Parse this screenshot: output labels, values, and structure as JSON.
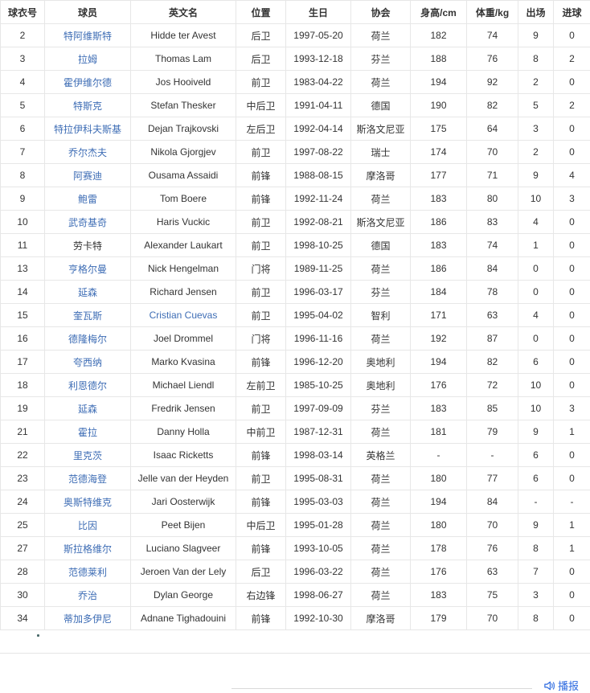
{
  "table": {
    "headers": [
      "球衣号",
      "球员",
      "英文名",
      "位置",
      "生日",
      "协会",
      "身高/cm",
      "体重/kg",
      "出场",
      "进球"
    ],
    "rows": [
      {
        "cells": [
          "2",
          "特阿维斯特",
          "Hidde ter Avest",
          "后卫",
          "1997-05-20",
          "荷兰",
          "182",
          "74",
          "9",
          "0"
        ],
        "link_cols": [
          1
        ]
      },
      {
        "cells": [
          "3",
          "拉姆",
          "Thomas Lam",
          "后卫",
          "1993-12-18",
          "芬兰",
          "188",
          "76",
          "8",
          "2"
        ],
        "link_cols": [
          1
        ]
      },
      {
        "cells": [
          "4",
          "霍伊维尔德",
          "Jos Hooiveld",
          "前卫",
          "1983-04-22",
          "荷兰",
          "194",
          "92",
          "2",
          "0"
        ],
        "link_cols": [
          1
        ]
      },
      {
        "cells": [
          "5",
          "特斯克",
          "Stefan Thesker",
          "中后卫",
          "1991-04-11",
          "德国",
          "190",
          "82",
          "5",
          "2"
        ],
        "link_cols": [
          1
        ]
      },
      {
        "cells": [
          "6",
          "特拉伊科夫斯基",
          "Dejan Trajkovski",
          "左后卫",
          "1992-04-14",
          "斯洛文尼亚",
          "175",
          "64",
          "3",
          "0"
        ],
        "link_cols": [
          1
        ]
      },
      {
        "cells": [
          "7",
          "乔尔杰夫",
          "Nikola Gjorgjev",
          "前卫",
          "1997-08-22",
          "瑞士",
          "174",
          "70",
          "2",
          "0"
        ],
        "link_cols": [
          1
        ]
      },
      {
        "cells": [
          "8",
          "阿赛迪",
          "Ousama Assaidi",
          "前锋",
          "1988-08-15",
          "摩洛哥",
          "177",
          "71",
          "9",
          "4"
        ],
        "link_cols": [
          1
        ]
      },
      {
        "cells": [
          "9",
          "鲍雷",
          "Tom Boere",
          "前锋",
          "1992-11-24",
          "荷兰",
          "183",
          "80",
          "10",
          "3"
        ],
        "link_cols": [
          1
        ]
      },
      {
        "cells": [
          "10",
          "武奇基奇",
          "Haris Vuckic",
          "前卫",
          "1992-08-21",
          "斯洛文尼亚",
          "186",
          "83",
          "4",
          "0"
        ],
        "link_cols": [
          1
        ]
      },
      {
        "cells": [
          "11",
          "劳卡特",
          "Alexander Laukart",
          "前卫",
          "1998-10-25",
          "德国",
          "183",
          "74",
          "1",
          "0"
        ],
        "link_cols": []
      },
      {
        "cells": [
          "13",
          "亨格尔曼",
          "Nick Hengelman",
          "门将",
          "1989-11-25",
          "荷兰",
          "186",
          "84",
          "0",
          "0"
        ],
        "link_cols": [
          1
        ]
      },
      {
        "cells": [
          "14",
          "延森",
          "Richard Jensen",
          "前卫",
          "1996-03-17",
          "芬兰",
          "184",
          "78",
          "0",
          "0"
        ],
        "link_cols": [
          1
        ]
      },
      {
        "cells": [
          "15",
          "奎瓦斯",
          "Cristian Cuevas",
          "前卫",
          "1995-04-02",
          "智利",
          "171",
          "63",
          "4",
          "0"
        ],
        "link_cols": [
          1,
          2
        ]
      },
      {
        "cells": [
          "16",
          "德隆梅尔",
          "Joel Drommel",
          "门将",
          "1996-11-16",
          "荷兰",
          "192",
          "87",
          "0",
          "0"
        ],
        "link_cols": [
          1
        ]
      },
      {
        "cells": [
          "17",
          "夸西纳",
          "Marko Kvasina",
          "前锋",
          "1996-12-20",
          "奥地利",
          "194",
          "82",
          "6",
          "0"
        ],
        "link_cols": [
          1
        ]
      },
      {
        "cells": [
          "18",
          "利恩德尔",
          "Michael Liendl",
          "左前卫",
          "1985-10-25",
          "奥地利",
          "176",
          "72",
          "10",
          "0"
        ],
        "link_cols": [
          1
        ]
      },
      {
        "cells": [
          "19",
          "延森",
          "Fredrik Jensen",
          "前卫",
          "1997-09-09",
          "芬兰",
          "183",
          "85",
          "10",
          "3"
        ],
        "link_cols": [
          1
        ]
      },
      {
        "cells": [
          "21",
          "霍拉",
          "Danny Holla",
          "中前卫",
          "1987-12-31",
          "荷兰",
          "181",
          "79",
          "9",
          "1"
        ],
        "link_cols": [
          1
        ]
      },
      {
        "cells": [
          "22",
          "里克茨",
          "Isaac Ricketts",
          "前锋",
          "1998-03-14",
          "英格兰",
          "-",
          "-",
          "6",
          "0"
        ],
        "link_cols": [
          1
        ]
      },
      {
        "cells": [
          "23",
          "范德海登",
          "Jelle van der Heyden",
          "前卫",
          "1995-08-31",
          "荷兰",
          "180",
          "77",
          "6",
          "0"
        ],
        "link_cols": [
          1
        ]
      },
      {
        "cells": [
          "24",
          "奥斯特维克",
          "Jari Oosterwijk",
          "前锋",
          "1995-03-03",
          "荷兰",
          "194",
          "84",
          "-",
          "-"
        ],
        "link_cols": [
          1
        ]
      },
      {
        "cells": [
          "25",
          "比因",
          "Peet Bijen",
          "中后卫",
          "1995-01-28",
          "荷兰",
          "180",
          "70",
          "9",
          "1"
        ],
        "link_cols": [
          1
        ]
      },
      {
        "cells": [
          "27",
          "斯拉格维尔",
          "Luciano Slagveer",
          "前锋",
          "1993-10-05",
          "荷兰",
          "178",
          "76",
          "8",
          "1"
        ],
        "link_cols": [
          1
        ]
      },
      {
        "cells": [
          "28",
          "范德莱利",
          "Jeroen Van der Lely",
          "后卫",
          "1996-03-22",
          "荷兰",
          "176",
          "63",
          "7",
          "0"
        ],
        "link_cols": [
          1
        ]
      },
      {
        "cells": [
          "30",
          "乔治",
          "Dylan George",
          "右边锋",
          "1998-06-27",
          "荷兰",
          "183",
          "75",
          "3",
          "0"
        ],
        "link_cols": [
          1
        ]
      },
      {
        "cells": [
          "34",
          "蒂加多伊尼",
          "Adnane Tighadouini",
          "前锋",
          "1992-10-30",
          "摩洛哥",
          "179",
          "70",
          "8",
          "0"
        ],
        "link_cols": [
          1
        ]
      }
    ]
  },
  "footnote": ".",
  "tts": {
    "label": "播报"
  },
  "colors": {
    "link_blue": "#3e6db5",
    "tts_blue": "#2d6ae0",
    "border_gray": "#e7e7e7",
    "text_dark": "#333333"
  }
}
